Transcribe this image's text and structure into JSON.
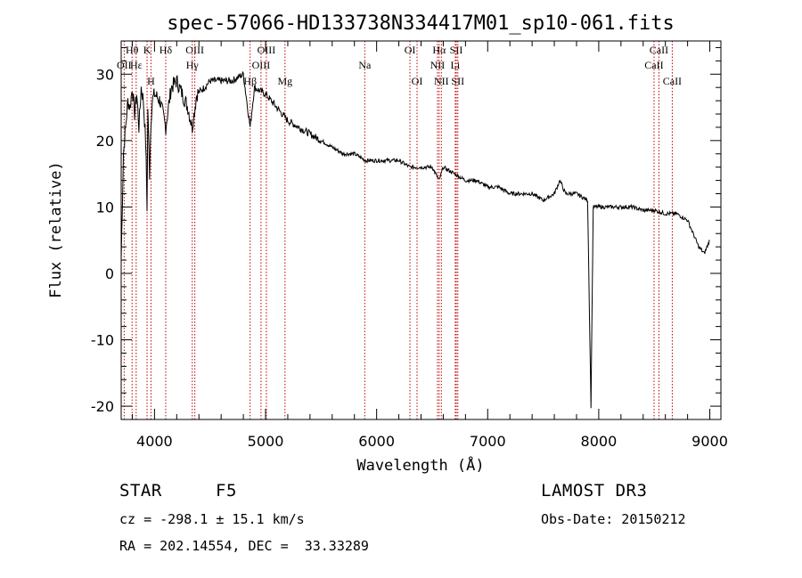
{
  "chart_data": {
    "type": "line",
    "title": "spec-57066-HD133738N334417M01_sp10-061.fits",
    "xlabel": "Wavelength (Å)",
    "ylabel": "Flux (relative)",
    "xlim": [
      3700,
      9100
    ],
    "ylim": [
      -22,
      35
    ],
    "xticks": [
      4000,
      5000,
      6000,
      7000,
      8000,
      9000
    ],
    "yticks": [
      -20,
      -10,
      0,
      10,
      20,
      30
    ],
    "series": [
      {
        "name": "flux",
        "x": [
          3700,
          3720,
          3740,
          3760,
          3780,
          3800,
          3820,
          3840,
          3860,
          3880,
          3900,
          3920,
          3933,
          3940,
          3955,
          3968,
          3980,
          4000,
          4050,
          4101,
          4150,
          4200,
          4250,
          4300,
          4340,
          4380,
          4450,
          4500,
          4600,
          4700,
          4800,
          4861,
          4900,
          5000,
          5100,
          5200,
          5300,
          5400,
          5500,
          5600,
          5700,
          5800,
          5900,
          6000,
          6100,
          6200,
          6300,
          6400,
          6500,
          6563,
          6600,
          6700,
          6800,
          6900,
          7000,
          7100,
          7200,
          7300,
          7400,
          7500,
          7600,
          7650,
          7700,
          7800,
          7900,
          7930,
          7950,
          8000,
          8100,
          8200,
          8300,
          8400,
          8500,
          8600,
          8700,
          8800,
          8850,
          8900,
          8950,
          9000
        ],
        "y": [
          2,
          18,
          22,
          26,
          25,
          28,
          24,
          27,
          22,
          28,
          26,
          20,
          10,
          25,
          15,
          23,
          26,
          27,
          26,
          22,
          28,
          29,
          27,
          25,
          22,
          27,
          28,
          29,
          29,
          29,
          30,
          22,
          28,
          27,
          25,
          23,
          22,
          21,
          20,
          19,
          18,
          18,
          17,
          17,
          17,
          17,
          16,
          16,
          16,
          14,
          16,
          15,
          14,
          14,
          13,
          13,
          12,
          12,
          12,
          11,
          12,
          14,
          12,
          12,
          11,
          -20,
          10,
          10,
          10,
          10,
          10,
          9.5,
          9.5,
          9,
          9,
          8,
          6,
          4,
          3,
          5
        ]
      }
    ],
    "lines": [
      {
        "label": "Hθ",
        "x": 3798,
        "row": 1
      },
      {
        "label": "OII",
        "x": 3727,
        "row": 2
      },
      {
        "label": "Hε",
        "x": 3835,
        "row": 2
      },
      {
        "label": "K",
        "x": 3933,
        "row": 1
      },
      {
        "label": "H",
        "x": 3968,
        "row": 3
      },
      {
        "label": "Hδ",
        "x": 4101,
        "row": 1
      },
      {
        "label": "OIII",
        "x": 4363,
        "row": 1
      },
      {
        "label": "Hγ",
        "x": 4340,
        "row": 2
      },
      {
        "label": "OIII",
        "x": 5007,
        "row": 1
      },
      {
        "label": "OIII",
        "x": 4959,
        "row": 2
      },
      {
        "label": "Hβ",
        "x": 4861,
        "row": 3
      },
      {
        "label": "Mg",
        "x": 5175,
        "row": 3
      },
      {
        "label": "Na",
        "x": 5893,
        "row": 2
      },
      {
        "label": "OI",
        "x": 6300,
        "row": 1
      },
      {
        "label": "OI",
        "x": 6364,
        "row": 3
      },
      {
        "label": "Hα",
        "x": 6563,
        "row": 1
      },
      {
        "label": "NII",
        "x": 6548,
        "row": 2
      },
      {
        "label": "NII",
        "x": 6583,
        "row": 3
      },
      {
        "label": "SII",
        "x": 6717,
        "row": 1
      },
      {
        "label": "Li",
        "x": 6708,
        "row": 2
      },
      {
        "label": "SII",
        "x": 6731,
        "row": 3
      },
      {
        "label": "CaII",
        "x": 8542,
        "row": 1
      },
      {
        "label": "CaII",
        "x": 8498,
        "row": 2
      },
      {
        "label": "CaII",
        "x": 8662,
        "row": 3
      }
    ]
  },
  "info": {
    "class": "STAR",
    "subclass": "F5",
    "survey": "LAMOST DR3",
    "cz": "cz = -298.1 ± 15.1 km/s",
    "obs_date": "Obs-Date: 20150212",
    "radec": "RA = 202.14554, DEC =  33.33289"
  },
  "colors": {
    "axis": "#000000",
    "spectrum": "#000000",
    "line_marker": "#c00000"
  }
}
